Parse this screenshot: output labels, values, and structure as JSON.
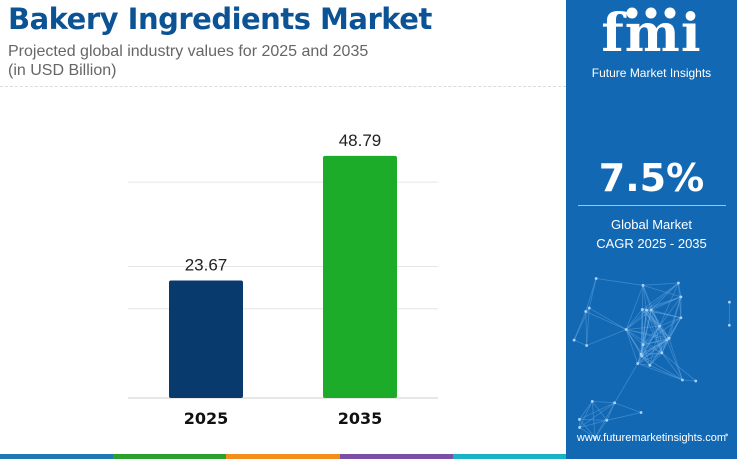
{
  "header": {
    "title": "Bakery Ingredients Market",
    "subtitle_line1": "Projected global industry values for 2025 and 2035",
    "subtitle_line2": "(in USD Billion)"
  },
  "chart_data": {
    "type": "bar",
    "categories": [
      "2025",
      "2035"
    ],
    "values": [
      23.67,
      48.79
    ],
    "value_labels": [
      "23.67",
      "48.79"
    ],
    "bar_colors": [
      "#083a6e",
      "#1dac2a"
    ],
    "ylim": [
      0,
      52
    ],
    "grid": true,
    "xlabel": "",
    "ylabel": ""
  },
  "side_panel": {
    "logo_text": "fmi",
    "logo_caption": "Future Market Insights",
    "cagr_value": "7.5%",
    "cagr_label_line1": "Global Market",
    "cagr_label_line2": "CAGR 2025 - 2035",
    "website": "www.futuremarketinsights.com"
  },
  "colors": {
    "title": "#0b5394",
    "panel": "#1368b4",
    "panel_dark": "#0d5aa0",
    "accent_bars": [
      "#1f77b4",
      "#2ca02c",
      "#f28e1c",
      "#7b4fa3",
      "#1ab3c6"
    ]
  }
}
